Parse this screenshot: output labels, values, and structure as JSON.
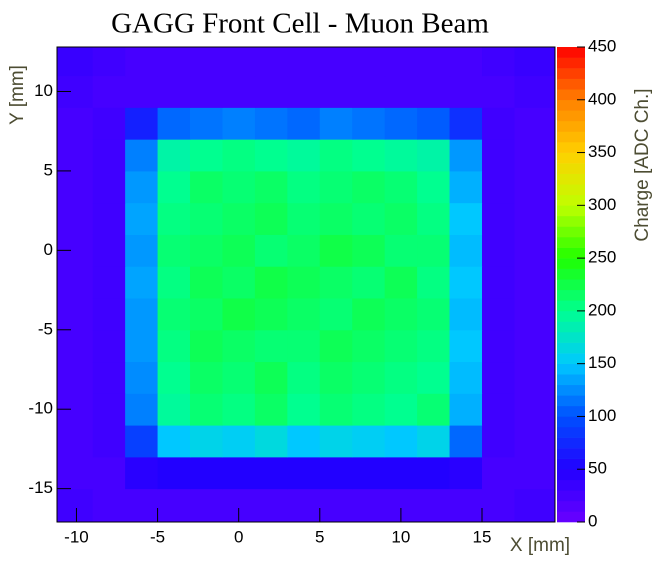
{
  "chart_data": {
    "type": "heatmap",
    "title": "GAGG Front Cell - Muon Beam",
    "x_label": "X [mm]",
    "y_label": "Y [mm]",
    "z_label": "Charge [ADC Ch.]",
    "xlim": [
      -11.2,
      19.5
    ],
    "ylim": [
      -17.1,
      12.8
    ],
    "zlim": [
      0,
      450
    ],
    "xticks": [
      -10,
      -5,
      0,
      5,
      10,
      15
    ],
    "yticks": [
      -15,
      -10,
      -5,
      0,
      5,
      10
    ],
    "zticks": [
      0,
      50,
      100,
      150,
      200,
      250,
      300,
      350,
      400,
      450
    ],
    "xbins": [
      -11.2,
      -9,
      -7,
      -5,
      -3,
      -1,
      1,
      3,
      5,
      7,
      9,
      11,
      13,
      15,
      17,
      19.5
    ],
    "ybins": [
      -17.1,
      -15,
      -13,
      -11,
      -9,
      -7,
      -5,
      -3,
      -1,
      1,
      3,
      5,
      7,
      9,
      11,
      12.8
    ],
    "colorscale": [
      "#6a00ff",
      "#2200ff",
      "#0050ff",
      "#00c8ff",
      "#00ff90",
      "#20ff00",
      "#c0ff00",
      "#ffd000",
      "#ff8000",
      "#ff0000"
    ],
    "z": [
      [
        30,
        25,
        25,
        25,
        25,
        25,
        25,
        25,
        25,
        25,
        25,
        25,
        25,
        25,
        30
      ],
      [
        25,
        25,
        45,
        50,
        50,
        50,
        50,
        50,
        50,
        50,
        50,
        50,
        45,
        25,
        25
      ],
      [
        25,
        30,
        90,
        150,
        160,
        155,
        165,
        150,
        160,
        155,
        150,
        160,
        110,
        30,
        25
      ],
      [
        25,
        30,
        120,
        195,
        210,
        205,
        215,
        200,
        210,
        205,
        200,
        210,
        140,
        30,
        25
      ],
      [
        25,
        30,
        125,
        200,
        215,
        210,
        220,
        205,
        215,
        210,
        205,
        200,
        145,
        30,
        25
      ],
      [
        25,
        30,
        130,
        205,
        220,
        215,
        210,
        210,
        220,
        215,
        210,
        205,
        150,
        30,
        25
      ],
      [
        25,
        30,
        130,
        210,
        215,
        225,
        220,
        215,
        210,
        220,
        215,
        210,
        145,
        30,
        25
      ],
      [
        25,
        30,
        135,
        205,
        220,
        215,
        225,
        220,
        215,
        210,
        220,
        205,
        150,
        30,
        25
      ],
      [
        25,
        30,
        130,
        210,
        215,
        220,
        210,
        215,
        225,
        220,
        210,
        210,
        145,
        30,
        25
      ],
      [
        25,
        30,
        135,
        205,
        210,
        215,
        220,
        210,
        215,
        210,
        215,
        205,
        150,
        30,
        25
      ],
      [
        25,
        30,
        130,
        200,
        215,
        210,
        215,
        205,
        210,
        215,
        210,
        200,
        140,
        30,
        25
      ],
      [
        25,
        30,
        120,
        190,
        200,
        205,
        200,
        195,
        205,
        200,
        195,
        190,
        130,
        30,
        25
      ],
      [
        25,
        30,
        70,
        110,
        115,
        120,
        115,
        110,
        120,
        115,
        110,
        105,
        80,
        30,
        25
      ],
      [
        30,
        25,
        25,
        25,
        25,
        25,
        25,
        25,
        25,
        25,
        25,
        25,
        25,
        25,
        30
      ],
      [
        35,
        30,
        25,
        25,
        25,
        25,
        25,
        25,
        25,
        25,
        25,
        25,
        25,
        30,
        35
      ]
    ]
  }
}
